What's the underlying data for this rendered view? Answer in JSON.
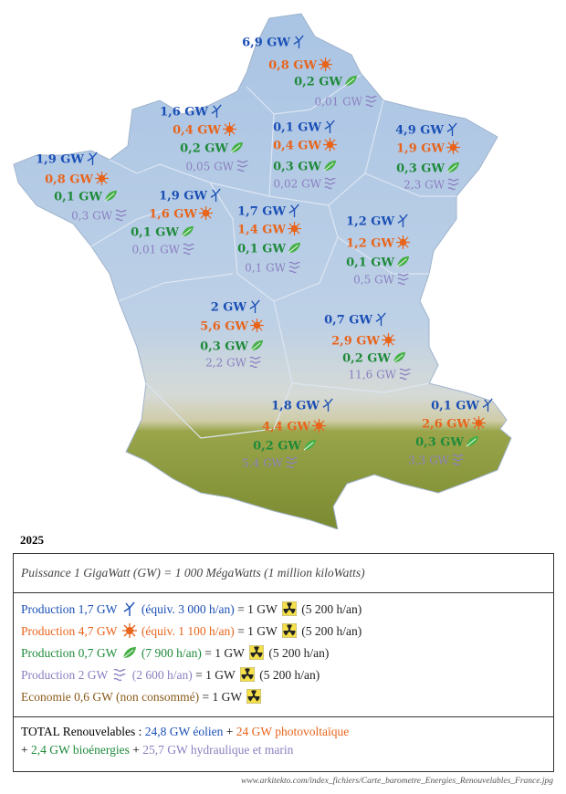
{
  "regions": [
    {
      "wind": "6,9 GW",
      "solar": "0,8 GW",
      "bio": "0,2 GW",
      "hydro": "0,01 GW"
    },
    {
      "wind": "1,6 GW",
      "solar": "0,4 GW",
      "bio": "0,2 GW",
      "hydro": "0,05 GW"
    },
    {
      "wind": "0,1 GW",
      "solar": "0,4 GW",
      "bio": "0,3 GW",
      "hydro": "0,02 GW"
    },
    {
      "wind": "4,9 GW",
      "solar": "1,9 GW",
      "bio": "0,3 GW",
      "hydro": "2,3 GW"
    },
    {
      "wind": "1,9 GW",
      "solar": "0,8 GW",
      "bio": "0,1 GW",
      "hydro": "0,3 GW"
    },
    {
      "wind": "1,9 GW",
      "solar": "1,6 GW",
      "bio": "0,1 GW",
      "hydro": "0,01 GW"
    },
    {
      "wind": "1,7 GW",
      "solar": "1,4 GW",
      "bio": "0,1 GW",
      "hydro": "0,1 GW"
    },
    {
      "wind": "1,2 GW",
      "solar": "1,2 GW",
      "bio": "0,1 GW",
      "hydro": "0,5 GW"
    },
    {
      "wind": "2 GW",
      "solar": "5,6 GW",
      "bio": "0,3 GW",
      "hydro": "2,2 GW"
    },
    {
      "wind": "0,7 GW",
      "solar": "2,9 GW",
      "bio": "0,2 GW",
      "hydro": "11,6 GW"
    },
    {
      "wind": "1,8 GW",
      "solar": "4,4 GW",
      "bio": "0,2 GW",
      "hydro": "5.4 GW"
    },
    {
      "wind": "0,1 GW",
      "solar": "2,6 GW",
      "bio": "0,3 GW",
      "hydro": "3,3 GW"
    }
  ],
  "year": "2025",
  "legend": {
    "definition": "Puissance 1 GigaWatt (GW) = 1 000 MégaWatts (1 million kiloWatts)",
    "equivalences": [
      {
        "production": "Production 1,7 GW",
        "hours": "(équiv. 3 000 h/an)",
        "equals": "= 1 GW",
        "nuclear_hours": "(5 200 h/an)"
      },
      {
        "production": "Production 4,7 GW",
        "hours": "(équiv. 1 100 h/an)",
        "equals": "= 1 GW",
        "nuclear_hours": "(5 200 h/an)"
      },
      {
        "production": "Production 0,7 GW",
        "hours": "(7 900 h/an)",
        "equals": "= 1 GW",
        "nuclear_hours": "(5 200 h/an)"
      },
      {
        "production": "Production 2 GW",
        "hours": "(2 600 h/an)",
        "equals": "= 1 GW",
        "nuclear_hours": "(5 200 h/an)"
      },
      {
        "production": "Economie 0,6 GW (non consommé)",
        "equals": "= 1 GW"
      }
    ],
    "total": {
      "label": "TOTAL Renouvelables :",
      "wind": "24,8 GW éolien",
      "plus": "+",
      "solar": "24 GW photovoltaïque",
      "bio": "2,4 GW bioénergies",
      "hydro": "25,7 GW hydraulique et marin"
    }
  },
  "source": "www.arkitekto.com/index_fichiers/Carte_barometre_Energies_Renouvelables_France.jpg"
}
